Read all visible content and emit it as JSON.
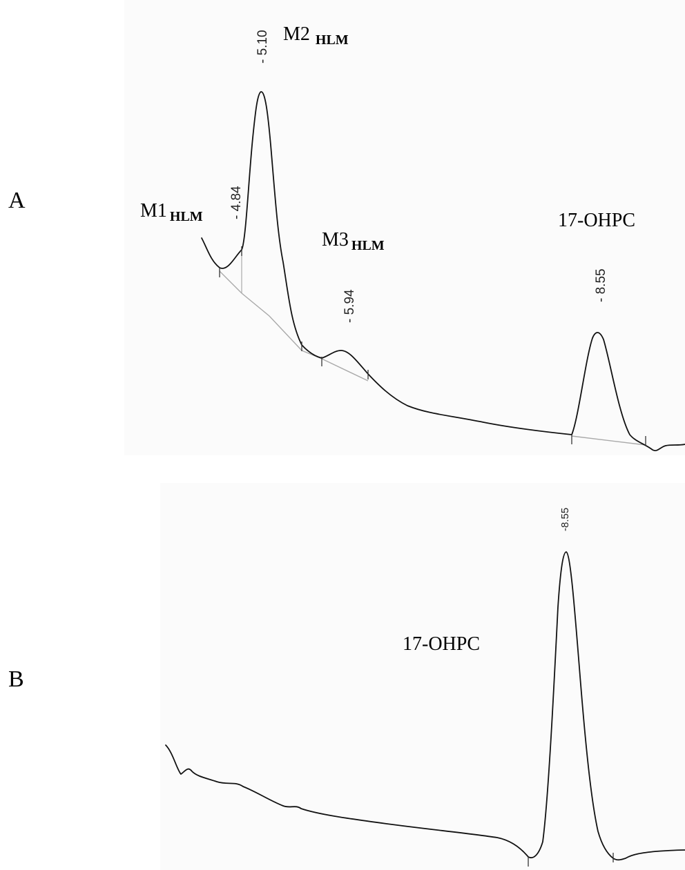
{
  "chart_data": [
    {
      "type": "line",
      "panel": "A",
      "peaks": [
        {
          "name": "M1",
          "subscript": "HLM",
          "rt": 4.84,
          "rt_label": "- 4.84"
        },
        {
          "name": "M2",
          "subscript": "HLM",
          "rt": 5.1,
          "rt_label": "- 5.10"
        },
        {
          "name": "M3",
          "subscript": "HLM",
          "rt": 5.94,
          "rt_label": "- 5.94"
        },
        {
          "name": "17-OHPC",
          "subscript": "",
          "rt": 8.55,
          "rt_label": "- 8.55"
        }
      ],
      "x": [
        4.45,
        4.6,
        4.72,
        4.84,
        4.92,
        5.0,
        5.05,
        5.1,
        5.15,
        5.2,
        5.3,
        5.5,
        5.65,
        5.8,
        5.94,
        6.1,
        6.3,
        6.5,
        7.0,
        7.5,
        8.0,
        8.3,
        8.45,
        8.55,
        8.65,
        8.8,
        8.93,
        9.0,
        9.1
      ],
      "y": [
        0.43,
        0.38,
        0.31,
        0.35,
        0.55,
        0.82,
        0.92,
        0.98,
        0.93,
        0.8,
        0.5,
        0.25,
        0.23,
        0.21,
        0.24,
        0.18,
        0.14,
        0.11,
        0.09,
        0.07,
        0.05,
        0.05,
        0.18,
        0.3,
        0.2,
        0.05,
        0.0,
        0.01,
        0.01
      ],
      "grid": false
    },
    {
      "type": "line",
      "panel": "B",
      "peaks": [
        {
          "name": "17-OHPC",
          "subscript": "",
          "rt": 8.55,
          "rt_label": "-8.55"
        }
      ],
      "x": [
        4.45,
        4.55,
        4.6,
        4.7,
        4.8,
        5.0,
        5.3,
        5.6,
        6.0,
        6.5,
        7.0,
        7.5,
        7.9,
        8.1,
        8.25,
        8.35,
        8.45,
        8.55,
        8.65,
        8.75,
        8.85,
        8.95,
        9.05,
        9.2
      ],
      "y": [
        0.26,
        0.2,
        0.21,
        0.19,
        0.17,
        0.15,
        0.12,
        0.09,
        0.07,
        0.06,
        0.05,
        0.04,
        0.02,
        0.0,
        0.05,
        0.35,
        0.85,
        1.0,
        0.75,
        0.35,
        0.08,
        0.02,
        0.03,
        0.05
      ],
      "grid": false
    }
  ],
  "panels": {
    "a": {
      "label": "A",
      "m1_name": "M1",
      "m1_sub": "HLM",
      "m1_rt": "- 4.84",
      "m2_name": "M2",
      "m2_sub": "HLM",
      "m2_rt": "- 5.10",
      "m3_name": "M3",
      "m3_sub": "HLM",
      "m3_rt": "- 5.94",
      "ohpc_name": "17-OHPC",
      "ohpc_rt": "- 8.55"
    },
    "b": {
      "label": "B",
      "ohpc_name": "17-OHPC",
      "ohpc_rt": "-8.55"
    }
  },
  "colors": {
    "trace": "#111111",
    "baseline": "#a9a9a9",
    "background": "#ffffff"
  }
}
